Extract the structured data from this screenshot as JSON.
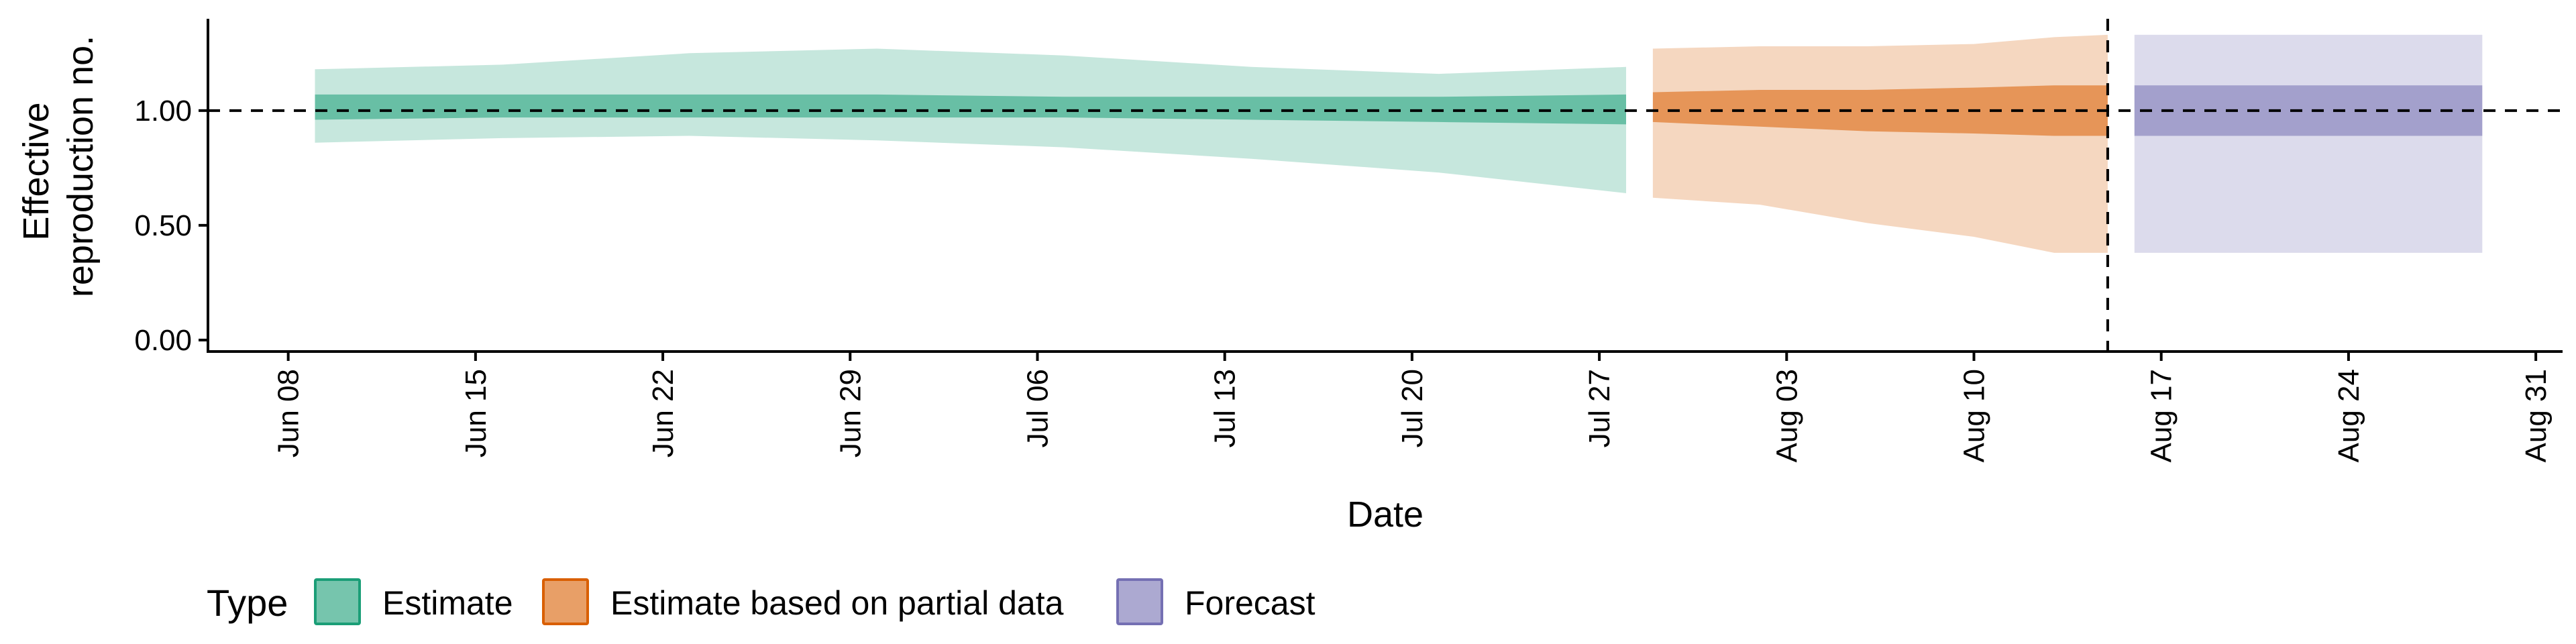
{
  "chart_data": {
    "type": "area",
    "title": "",
    "xlabel": "Date",
    "ylabel_lines": [
      "Effective",
      "reproduction no."
    ],
    "x_range": [
      "2020-06-05",
      "2020-09-01"
    ],
    "ylim": [
      -0.05,
      1.4
    ],
    "y_ticks": [
      0.0,
      0.5,
      1.0
    ],
    "y_tick_labels": [
      "0.00",
      "0.50",
      "1.00"
    ],
    "x_ticks": [
      "2020-06-08",
      "2020-06-15",
      "2020-06-22",
      "2020-06-29",
      "2020-07-06",
      "2020-07-13",
      "2020-07-20",
      "2020-07-27",
      "2020-08-03",
      "2020-08-10",
      "2020-08-17",
      "2020-08-24",
      "2020-08-31"
    ],
    "x_tick_labels": [
      "Jun 08",
      "Jun 15",
      "Jun 22",
      "Jun 29",
      "Jul 06",
      "Jul 13",
      "Jul 20",
      "Jul 27",
      "Aug 03",
      "Aug 10",
      "Aug 17",
      "Aug 24",
      "Aug 31"
    ],
    "reference_line_y": 1.0,
    "forecast_start_date": "2020-08-15",
    "grid": false,
    "legend": {
      "title": "Type",
      "position": "bottom",
      "entries": [
        "Estimate",
        "Estimate based on partial data",
        "Forecast"
      ]
    },
    "colors": {
      "Estimate": "#1b9e77",
      "Estimate based on partial data": "#d95f02",
      "Forecast": "#7570b3"
    },
    "series": [
      {
        "name": "Estimate",
        "dates": [
          "2020-06-09",
          "2020-06-16",
          "2020-06-23",
          "2020-06-30",
          "2020-07-07",
          "2020-07-14",
          "2020-07-21",
          "2020-07-28"
        ],
        "lower_90": [
          0.86,
          0.88,
          0.89,
          0.87,
          0.84,
          0.79,
          0.73,
          0.64
        ],
        "lower_50": [
          0.96,
          0.97,
          0.97,
          0.97,
          0.97,
          0.96,
          0.95,
          0.94
        ],
        "upper_50": [
          1.07,
          1.07,
          1.07,
          1.07,
          1.06,
          1.06,
          1.06,
          1.07
        ],
        "upper_90": [
          1.18,
          1.2,
          1.25,
          1.27,
          1.24,
          1.19,
          1.16,
          1.19
        ]
      },
      {
        "name": "Estimate based on partial data",
        "dates": [
          "2020-07-29",
          "2020-08-02",
          "2020-08-06",
          "2020-08-10",
          "2020-08-13",
          "2020-08-15"
        ],
        "lower_90": [
          0.62,
          0.59,
          0.51,
          0.45,
          0.38,
          0.38
        ],
        "lower_50": [
          0.95,
          0.93,
          0.91,
          0.9,
          0.89,
          0.89
        ],
        "upper_50": [
          1.08,
          1.09,
          1.09,
          1.1,
          1.11,
          1.11
        ],
        "upper_90": [
          1.27,
          1.28,
          1.28,
          1.29,
          1.32,
          1.33
        ]
      },
      {
        "name": "Forecast",
        "dates": [
          "2020-08-16",
          "2020-08-29"
        ],
        "lower_90": [
          0.38,
          0.38
        ],
        "lower_50": [
          0.89,
          0.89
        ],
        "upper_50": [
          1.11,
          1.11
        ],
        "upper_90": [
          1.33,
          1.33
        ]
      }
    ]
  }
}
